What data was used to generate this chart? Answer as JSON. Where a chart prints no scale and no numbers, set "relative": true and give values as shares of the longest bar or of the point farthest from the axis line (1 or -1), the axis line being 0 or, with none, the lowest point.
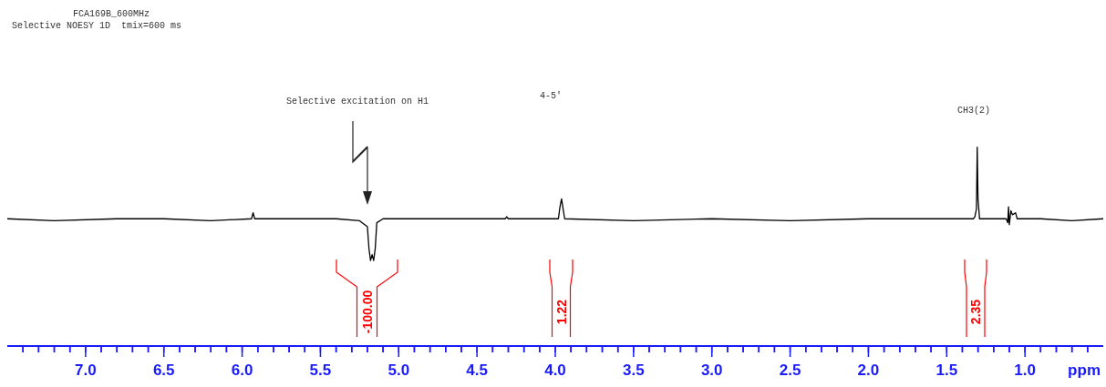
{
  "chart_data": {
    "type": "line",
    "title": "FCA169B_600MHz",
    "subtitle": "Selective NOESY 1D  tmix=600 ms",
    "xlabel": "ppm",
    "relative": true,
    "xlim": [
      7.5,
      0.5
    ],
    "xticks": [
      {
        "value": 7.4,
        "label": null
      },
      {
        "value": 7.3,
        "label": null
      },
      {
        "value": 7.2,
        "label": null
      },
      {
        "value": 7.1,
        "label": null
      },
      {
        "value": 7.0,
        "label": "7.0"
      },
      {
        "value": 6.9,
        "label": null
      },
      {
        "value": 6.8,
        "label": null
      },
      {
        "value": 6.7,
        "label": null
      },
      {
        "value": 6.6,
        "label": null
      },
      {
        "value": 6.5,
        "label": "6.5"
      },
      {
        "value": 6.4,
        "label": null
      },
      {
        "value": 6.3,
        "label": null
      },
      {
        "value": 6.2,
        "label": null
      },
      {
        "value": 6.1,
        "label": null
      },
      {
        "value": 6.0,
        "label": "6.0"
      },
      {
        "value": 5.9,
        "label": null
      },
      {
        "value": 5.8,
        "label": null
      },
      {
        "value": 5.7,
        "label": null
      },
      {
        "value": 5.6,
        "label": null
      },
      {
        "value": 5.5,
        "label": "5.5"
      },
      {
        "value": 5.4,
        "label": null
      },
      {
        "value": 5.3,
        "label": null
      },
      {
        "value": 5.2,
        "label": null
      },
      {
        "value": 5.1,
        "label": null
      },
      {
        "value": 5.0,
        "label": "5.0"
      },
      {
        "value": 4.9,
        "label": null
      },
      {
        "value": 4.8,
        "label": null
      },
      {
        "value": 4.7,
        "label": null
      },
      {
        "value": 4.6,
        "label": null
      },
      {
        "value": 4.5,
        "label": "4.5"
      },
      {
        "value": 4.4,
        "label": null
      },
      {
        "value": 4.3,
        "label": null
      },
      {
        "value": 4.2,
        "label": null
      },
      {
        "value": 4.1,
        "label": null
      },
      {
        "value": 4.0,
        "label": "4.0"
      },
      {
        "value": 3.9,
        "label": null
      },
      {
        "value": 3.8,
        "label": null
      },
      {
        "value": 3.7,
        "label": null
      },
      {
        "value": 3.6,
        "label": null
      },
      {
        "value": 3.5,
        "label": "3.5"
      },
      {
        "value": 3.4,
        "label": null
      },
      {
        "value": 3.3,
        "label": null
      },
      {
        "value": 3.2,
        "label": null
      },
      {
        "value": 3.1,
        "label": null
      },
      {
        "value": 3.0,
        "label": "3.0"
      },
      {
        "value": 2.9,
        "label": null
      },
      {
        "value": 2.8,
        "label": null
      },
      {
        "value": 2.7,
        "label": null
      },
      {
        "value": 2.6,
        "label": null
      },
      {
        "value": 2.5,
        "label": "2.5"
      },
      {
        "value": 2.4,
        "label": null
      },
      {
        "value": 2.3,
        "label": null
      },
      {
        "value": 2.2,
        "label": null
      },
      {
        "value": 2.1,
        "label": null
      },
      {
        "value": 2.0,
        "label": "2.0"
      },
      {
        "value": 1.9,
        "label": null
      },
      {
        "value": 1.8,
        "label": null
      },
      {
        "value": 1.7,
        "label": null
      },
      {
        "value": 1.6,
        "label": null
      },
      {
        "value": 1.5,
        "label": "1.5"
      },
      {
        "value": 1.4,
        "label": null
      },
      {
        "value": 1.3,
        "label": null
      },
      {
        "value": 1.2,
        "label": null
      },
      {
        "value": 1.1,
        "label": null
      },
      {
        "value": 1.0,
        "label": "1.0"
      },
      {
        "value": 0.9,
        "label": null
      },
      {
        "value": 0.8,
        "label": null
      },
      {
        "value": 0.7,
        "label": null
      },
      {
        "value": 0.6,
        "label": null
      }
    ],
    "series": [
      {
        "color": "#000000",
        "x": [
          7.5,
          7.2,
          6.8,
          6.5,
          6.2,
          5.94,
          5.93,
          5.92,
          5.6,
          5.4,
          5.25,
          5.2,
          5.19,
          5.18,
          5.17,
          5.16,
          5.15,
          5.14,
          5.1,
          4.7,
          4.32,
          4.31,
          4.3,
          3.98,
          3.97,
          3.96,
          3.95,
          3.94,
          3.5,
          3.0,
          2.5,
          2.0,
          1.6,
          1.33,
          1.32,
          1.31,
          1.305,
          1.3,
          1.29,
          1.2,
          1.12,
          1.11,
          1.105,
          1.1,
          1.09,
          1.08,
          1.06,
          1.05,
          0.9,
          0.7,
          0.5
        ],
        "values": [
          0.64,
          0.63,
          0.64,
          0.64,
          0.63,
          0.64,
          0.67,
          0.64,
          0.64,
          0.64,
          0.63,
          0.6,
          0.49,
          0.43,
          0.46,
          0.43,
          0.49,
          0.62,
          0.64,
          0.64,
          0.64,
          0.65,
          0.64,
          0.64,
          0.7,
          0.74,
          0.69,
          0.64,
          0.63,
          0.64,
          0.63,
          0.64,
          0.64,
          0.64,
          0.65,
          0.69,
          1.0,
          0.74,
          0.64,
          0.64,
          0.64,
          0.62,
          0.7,
          0.61,
          0.68,
          0.66,
          0.67,
          0.64,
          0.64,
          0.63,
          0.64
        ]
      }
    ],
    "annotations": [
      "Selective excitation on H1",
      "4-5′",
      "CH3(2)",
      "-100.00",
      "1.22",
      "2.35"
    ]
  }
}
